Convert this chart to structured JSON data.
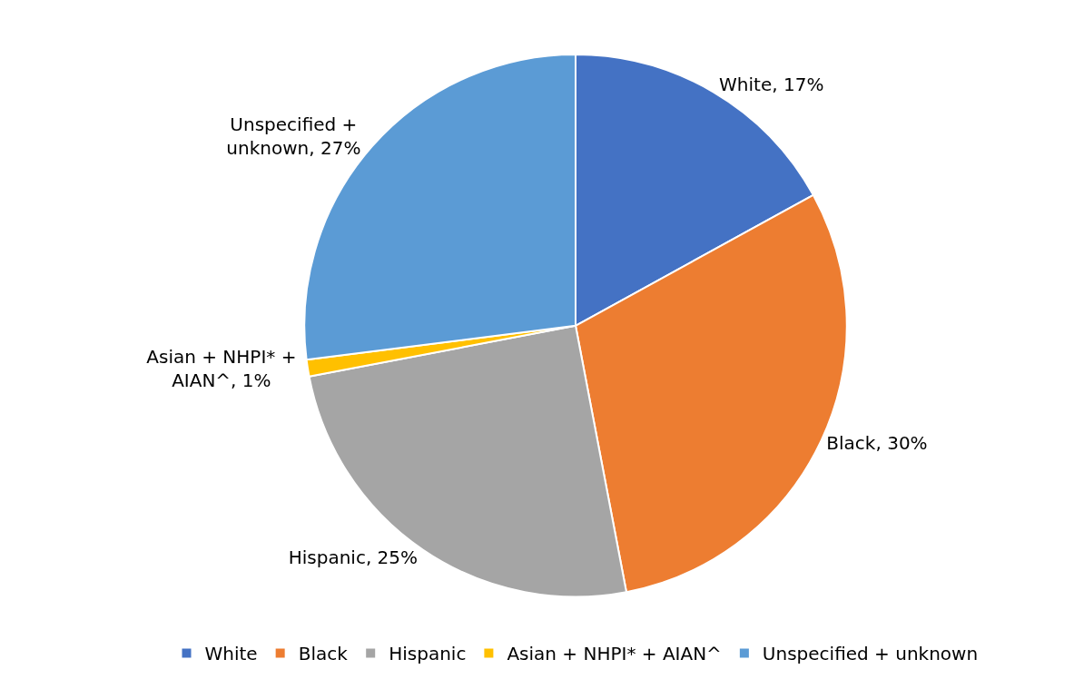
{
  "chart_data": {
    "type": "pie",
    "categories": [
      "White",
      "Black",
      "Hispanic",
      "Asian + NHPI* + AIAN^",
      "Unspecified + unknown"
    ],
    "values": [
      17,
      30,
      25,
      1,
      27
    ],
    "colors": [
      "#4472c4",
      "#ed7d31",
      "#a5a5a5",
      "#ffc000",
      "#5b9bd5"
    ],
    "value_labels": [
      "White, 17%",
      "Black, 30%",
      "Hispanic, 25%",
      "Asian + NHPI* + AIAN^, 1%",
      "Unspecified + unknown, 27%"
    ],
    "legend": "bottom"
  }
}
